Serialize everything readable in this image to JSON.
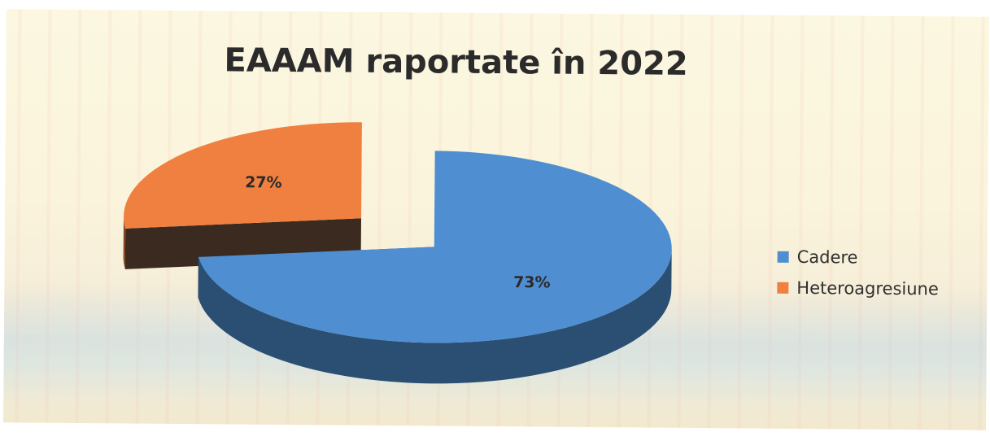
{
  "chart_data": {
    "type": "pie",
    "title": "EAAAM raportate în 2022",
    "slices": [
      {
        "name": "Cadere",
        "value": 73,
        "label": "73%",
        "color": "#4f8fd1"
      },
      {
        "name": "Heteroagresiune",
        "value": 27,
        "label": "27%",
        "color": "#f08040"
      }
    ],
    "legend_position": "right",
    "style": "3d-exploded"
  }
}
